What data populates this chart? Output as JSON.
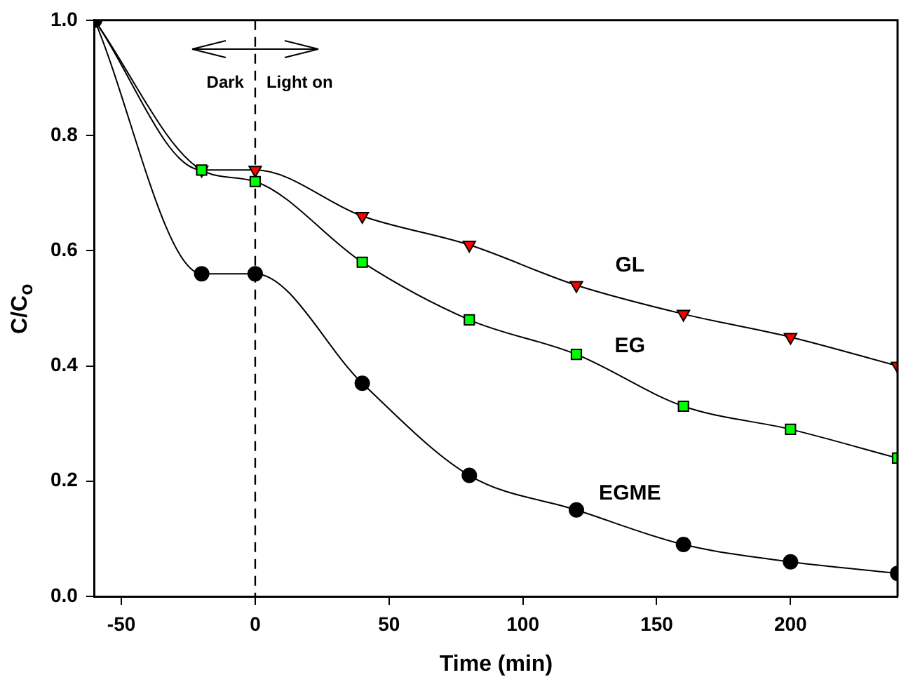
{
  "chart_data": {
    "type": "line",
    "xlabel": "Time (min)",
    "ylabel": "C/C$_{o}$",
    "x": [
      -60,
      -20,
      0,
      40,
      80,
      120,
      160,
      200,
      240
    ],
    "series": [
      {
        "name": "GL",
        "color": "#ff0000",
        "marker": "triangle",
        "values": [
          1.0,
          0.74,
          0.74,
          0.66,
          0.61,
          0.54,
          0.49,
          0.45,
          0.4
        ]
      },
      {
        "name": "EG",
        "color": "#00ff00",
        "marker": "square",
        "values": [
          1.0,
          0.74,
          0.72,
          0.58,
          0.48,
          0.42,
          0.33,
          0.29,
          0.24
        ]
      },
      {
        "name": "EGME",
        "color": "#000000",
        "marker": "circle",
        "values": [
          1.0,
          0.56,
          0.56,
          0.37,
          0.21,
          0.15,
          0.09,
          0.06,
          0.04
        ]
      }
    ],
    "xlim": [
      -60,
      240
    ],
    "xticks": [
      -50,
      0,
      50,
      100,
      150,
      200
    ],
    "ylim": [
      0,
      1
    ],
    "yticks": [
      {
        "value": 0,
        "label": "0.0"
      },
      {
        "value": 0.2,
        "label": "0.2"
      },
      {
        "value": 0.4,
        "label": "0.4"
      },
      {
        "value": 0.6,
        "label": "0.6"
      },
      {
        "value": 0.8,
        "label": "0.8"
      },
      {
        "value": 1,
        "label": "1.0"
      }
    ],
    "ref_lines": [
      {
        "axis": "x",
        "value": 0,
        "line_style": "dashed",
        "color": "#000000"
      }
    ],
    "annotations": [
      "Dark",
      "Light on"
    ],
    "grid": false,
    "legend": false
  }
}
